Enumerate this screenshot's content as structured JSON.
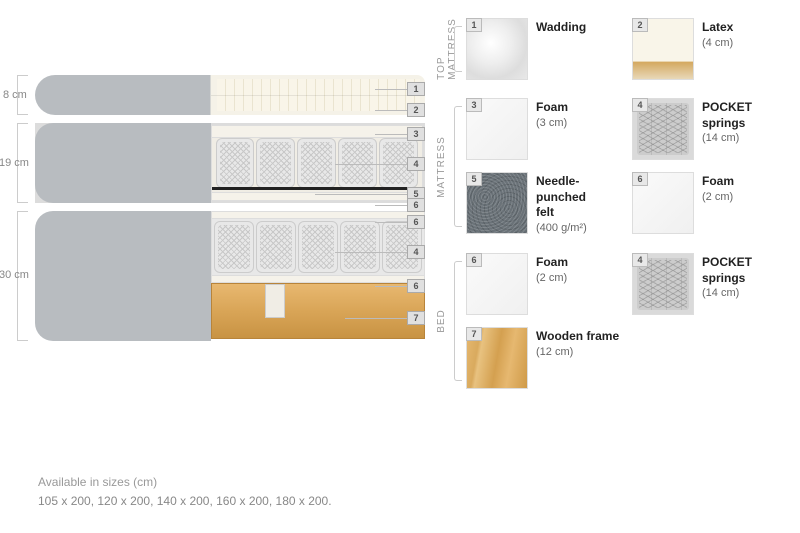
{
  "dimensions": {
    "top_mattress": "8 cm",
    "mattress": "19 cm",
    "bed": "30 cm"
  },
  "callouts": [
    "1",
    "2",
    "3",
    "4",
    "5",
    "6",
    "6",
    "4",
    "6",
    "7"
  ],
  "sections": {
    "top_mattress": {
      "label": "TOP MATTRESS",
      "items": [
        {
          "num": "1",
          "swatch": "wadding",
          "name": "Wadding",
          "detail": ""
        },
        {
          "num": "2",
          "swatch": "latex",
          "name": "Latex",
          "detail": "(4 cm)"
        }
      ]
    },
    "mattress": {
      "label": "MATTRESS",
      "items": [
        {
          "num": "3",
          "swatch": "foam",
          "name": "Foam",
          "detail": "(3 cm)"
        },
        {
          "num": "4",
          "swatch": "pocket",
          "name_html": "POCKET<br>springs",
          "detail": "(14 cm)"
        },
        {
          "num": "5",
          "swatch": "felt",
          "name_html": "Needle-<br>punched<br>felt",
          "detail": "(400 g/m²)"
        },
        {
          "num": "6",
          "swatch": "foam",
          "name": "Foam",
          "detail": "(2 cm)"
        }
      ]
    },
    "bed": {
      "label": "BED",
      "items": [
        {
          "num": "6",
          "swatch": "foam",
          "name": "Foam",
          "detail": "(2 cm)"
        },
        {
          "num": "4",
          "swatch": "pocket",
          "name_html": "POCKET<br>springs",
          "detail": "(14 cm)"
        },
        {
          "num": "7",
          "swatch": "wood",
          "name": "Wooden frame",
          "detail": "(12 cm)"
        }
      ]
    }
  },
  "sizes": {
    "title": "Available in sizes (cm)",
    "list": "105 x 200, 120 x 200, 140 x 200, 160 x 200, 180 x 200."
  },
  "colors": {
    "cover": "#b8bcc0",
    "foam": "#f5f2ea",
    "wood": "#d9a557",
    "felt": "#6a7278",
    "text_muted": "#888"
  }
}
